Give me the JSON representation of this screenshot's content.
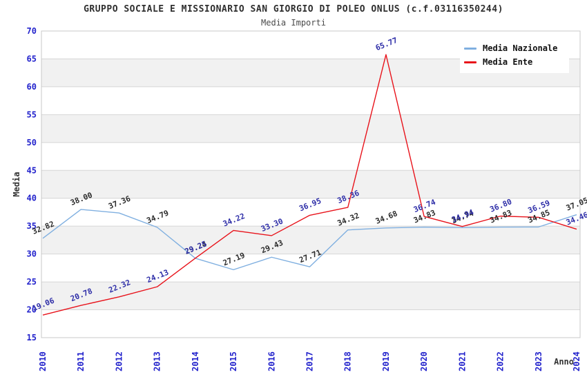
{
  "header": {
    "title": "GRUPPO SOCIALE E MISSIONARIO SAN GIORGIO DI POLEO ONLUS (c.f.03116350244)",
    "subtitle": "Media Importi"
  },
  "chart_data": {
    "type": "line",
    "title": "GRUPPO SOCIALE E MISSIONARIO SAN GIORGIO DI POLEO ONLUS (c.f.03116350244)",
    "subtitle": "Media Importi",
    "xlabel": "Anno",
    "ylabel": "Media",
    "ylim": [
      15,
      70
    ],
    "ytick_step": 5,
    "grid": true,
    "legend_position": "top-right",
    "categories": [
      "2010",
      "2011",
      "2012",
      "2013",
      "2014",
      "2015",
      "2016",
      "2017",
      "2018",
      "2019",
      "2020",
      "2021",
      "2022",
      "2023",
      "2024"
    ],
    "series": [
      {
        "name": "Media Nazionale",
        "color": "#7fafe0",
        "label_color": "#2b2b2b",
        "values": [
          32.82,
          38.0,
          37.36,
          34.79,
          29.24,
          27.19,
          29.43,
          27.71,
          34.32,
          34.68,
          34.83,
          34.74,
          34.83,
          34.85,
          37.05
        ]
      },
      {
        "name": "Media Ente",
        "color": "#e8121a",
        "label_color": "#2e2ea8",
        "values": [
          19.06,
          20.78,
          22.32,
          24.13,
          29.25,
          34.22,
          33.3,
          36.95,
          38.36,
          65.77,
          36.74,
          34.94,
          36.8,
          36.59,
          34.46
        ]
      }
    ],
    "style": {
      "band_fill": "#f1f1f1",
      "grid_color": "#d6d6d6",
      "frame_color": "#c8c8c8",
      "tick_color": "#2222cc",
      "axis_label_color": "#333333"
    }
  }
}
